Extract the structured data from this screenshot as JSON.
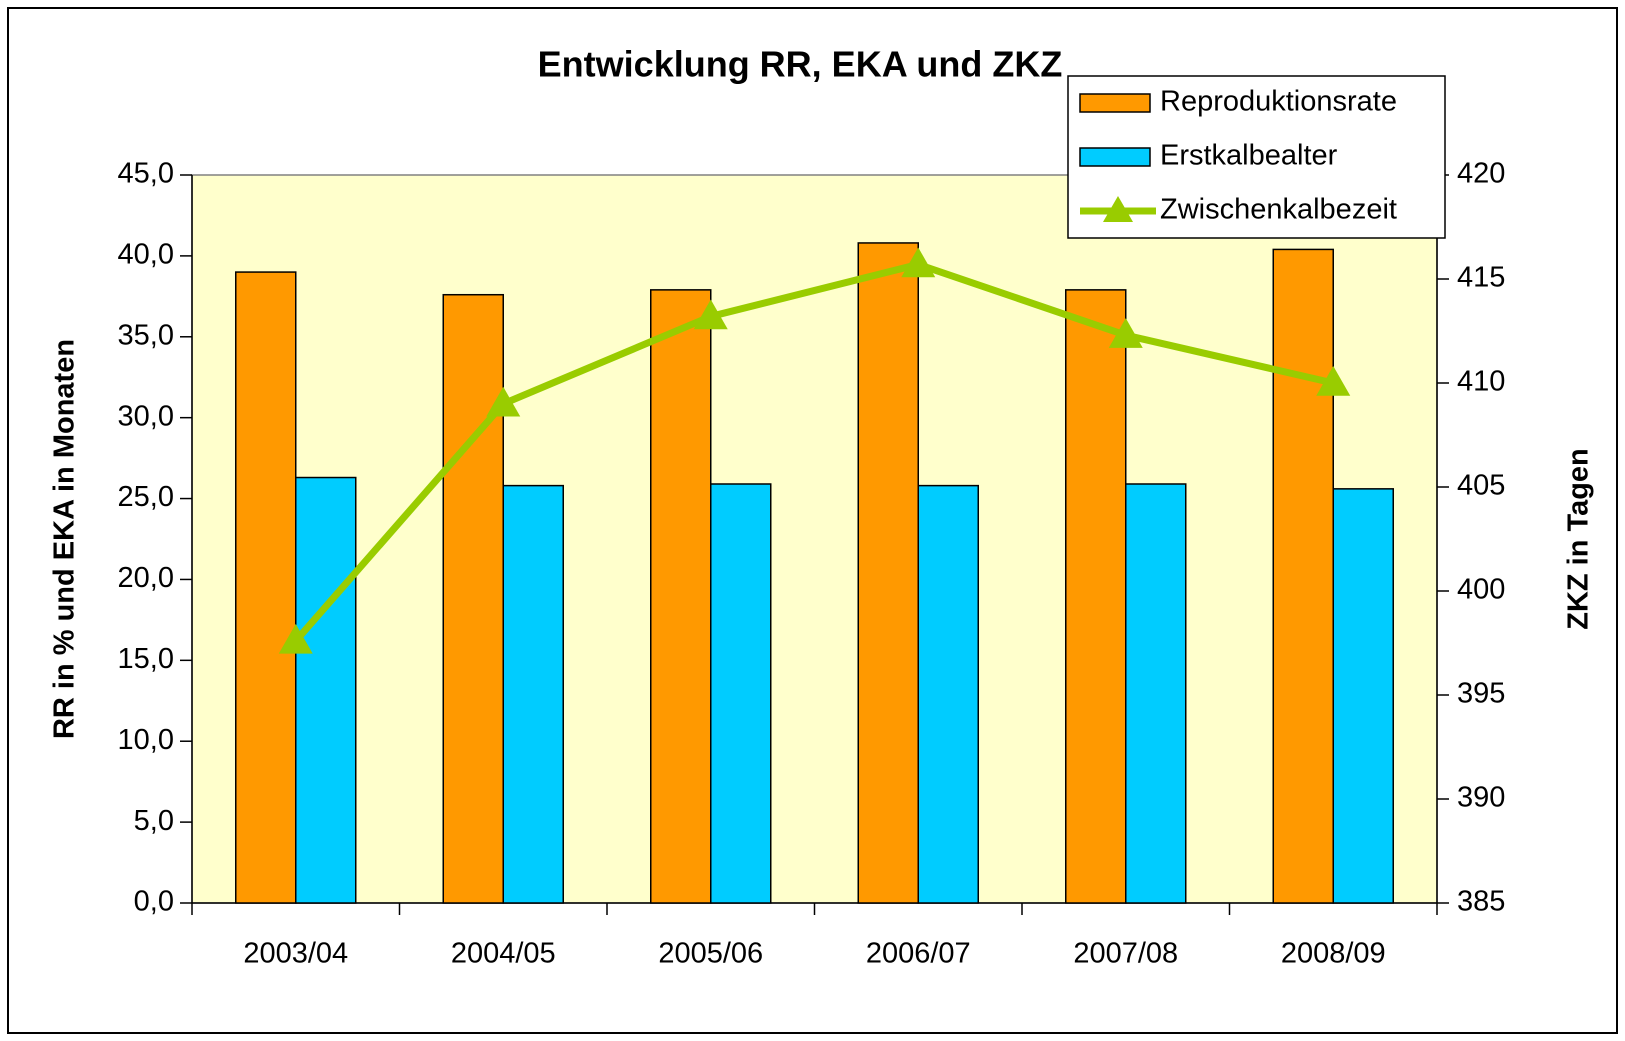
{
  "chart_data": {
    "type": "bar",
    "title": "Entwicklung RR, EKA und ZKZ",
    "y_label": "RR in % und EKA in Monaten",
    "y2_label": "ZKZ in Tagen",
    "categories": [
      "2003/04",
      "2004/05",
      "2005/06",
      "2006/07",
      "2007/08",
      "2008/09"
    ],
    "series": [
      {
        "name": "Reproduktionsrate",
        "type": "bar",
        "color": "#ff9900",
        "values": [
          39.0,
          37.6,
          37.9,
          40.8,
          37.9,
          40.4
        ]
      },
      {
        "name": "Erstkalbealter",
        "type": "bar",
        "color": "#00ccff",
        "values": [
          26.3,
          25.8,
          25.9,
          25.8,
          25.9,
          25.6
        ]
      },
      {
        "name": "Zwischenkalbezeit",
        "type": "line",
        "axis": "y2",
        "color": "#99cc00",
        "values": [
          397.6,
          409.0,
          413.2,
          415.7,
          412.3,
          410.0
        ]
      }
    ],
    "ylim": [
      0,
      45
    ],
    "yticks": [
      {
        "value": 0,
        "label": "0,0"
      },
      {
        "value": 5,
        "label": "5,0"
      },
      {
        "value": 10,
        "label": "10,0"
      },
      {
        "value": 15,
        "label": "15,0"
      },
      {
        "value": 20,
        "label": "20,0"
      },
      {
        "value": 25,
        "label": "25,0"
      },
      {
        "value": 30,
        "label": "30,0"
      },
      {
        "value": 35,
        "label": "35,0"
      },
      {
        "value": 40,
        "label": "40,0"
      },
      {
        "value": 45,
        "label": "45,0"
      }
    ],
    "y2lim": [
      385,
      420
    ],
    "y2ticks": [
      385,
      390,
      395,
      400,
      405,
      410,
      415,
      420
    ],
    "plot_background": "#ffffcc",
    "legend": "top-right"
  }
}
